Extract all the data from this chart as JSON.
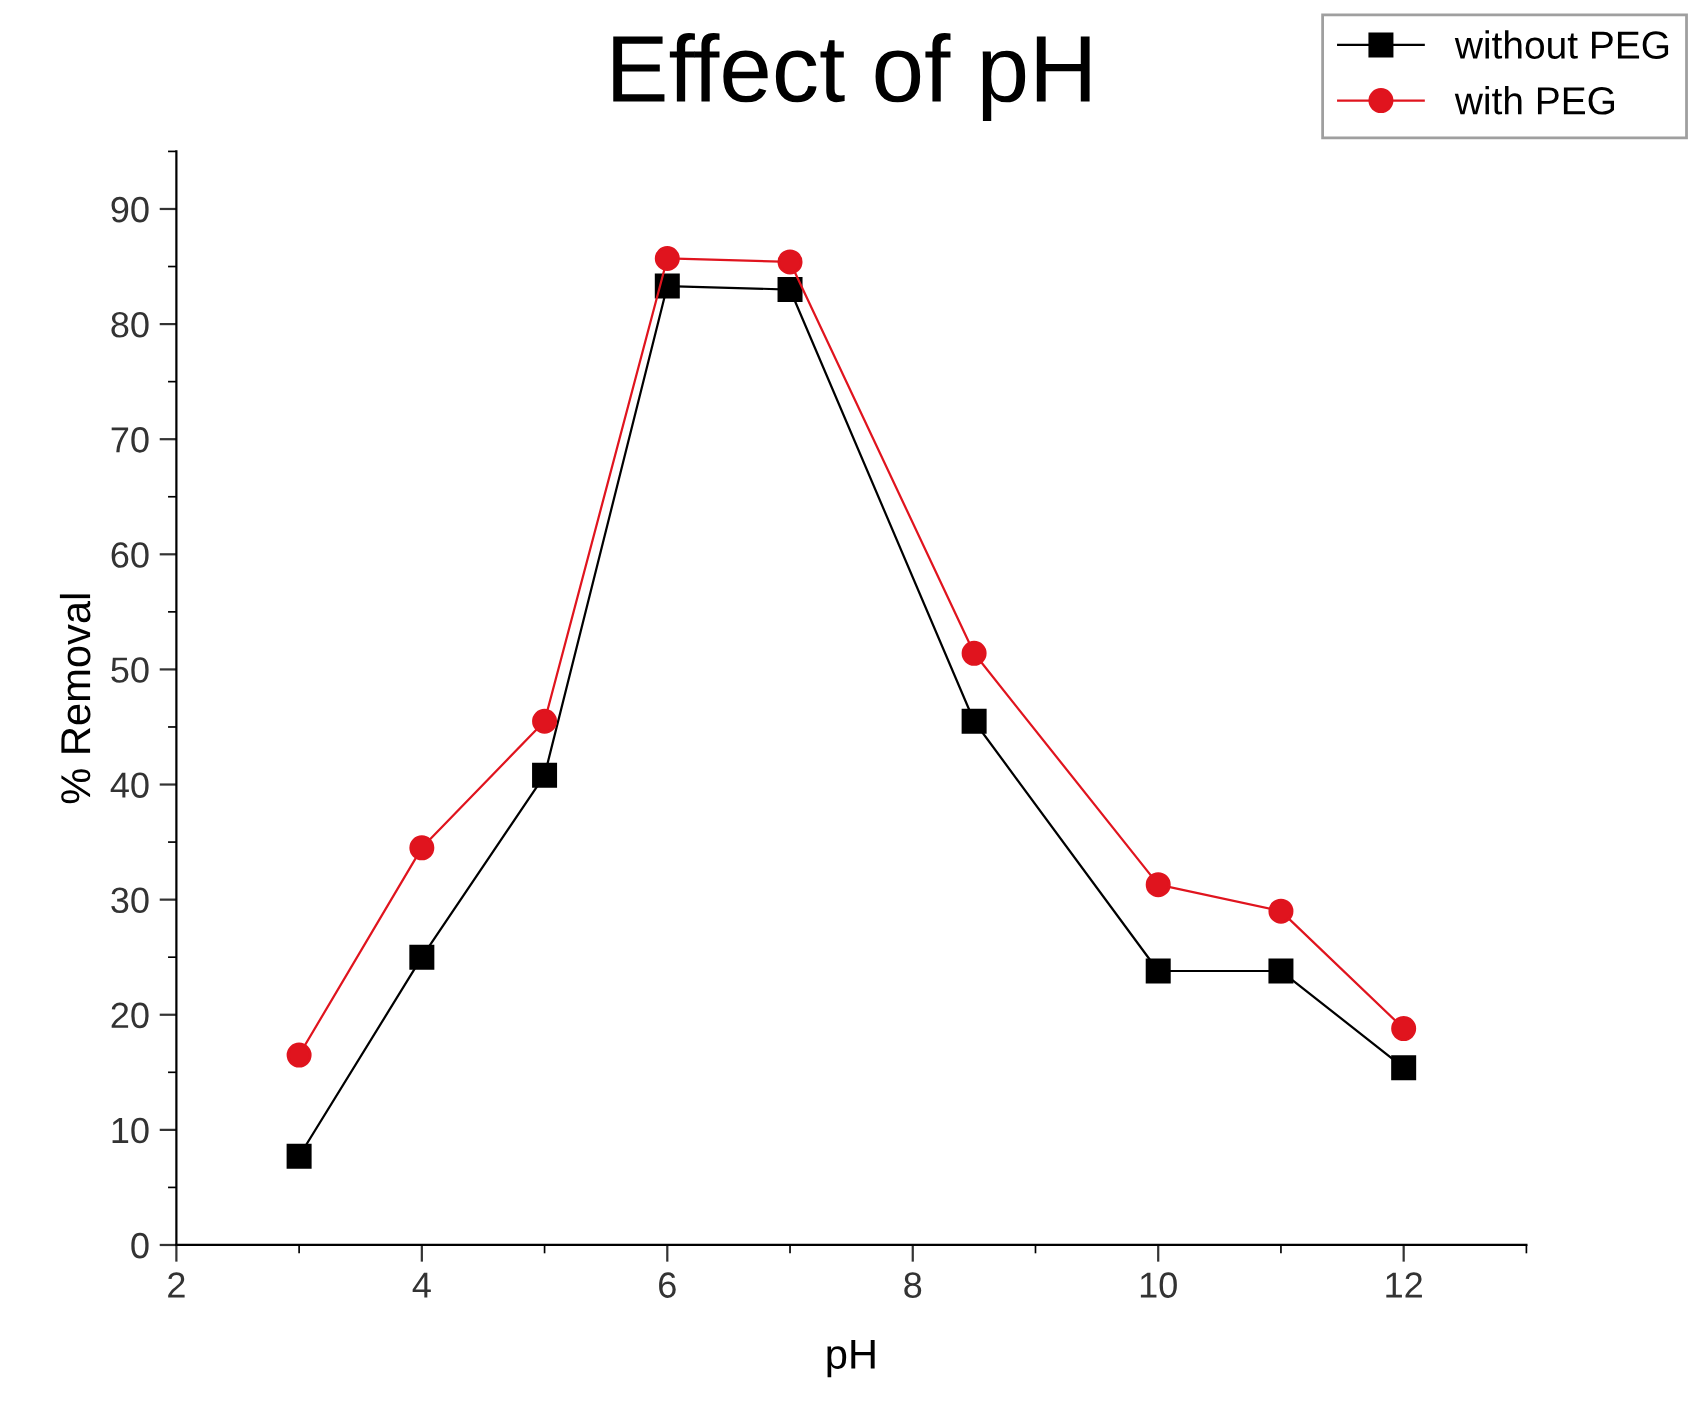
{
  "chart_data": {
    "type": "line",
    "title": "Effect of pH",
    "xlabel": "pH",
    "ylabel": "% Removal",
    "x": [
      3,
      4,
      5,
      6,
      7,
      8.5,
      10,
      11,
      12
    ],
    "series": [
      {
        "name": "without PEG",
        "color": "#000000",
        "marker": "square",
        "values": [
          7.7,
          25,
          40.8,
          83.3,
          83,
          45.5,
          23.8,
          23.8,
          15.4
        ]
      },
      {
        "name": "with PEG",
        "color": "#e0141e",
        "marker": "circle",
        "values": [
          16.5,
          34.5,
          45.5,
          85.7,
          85.4,
          51.4,
          31.3,
          29,
          18.8
        ]
      }
    ],
    "xlim": [
      2,
      13
    ],
    "xticks": [
      2,
      4,
      6,
      8,
      10,
      12
    ],
    "ylim": [
      0,
      95
    ],
    "yticks": [
      0,
      10,
      20,
      30,
      40,
      50,
      60,
      70,
      80,
      90
    ],
    "grid": false,
    "legend": "top right",
    "line_style": "solid"
  }
}
